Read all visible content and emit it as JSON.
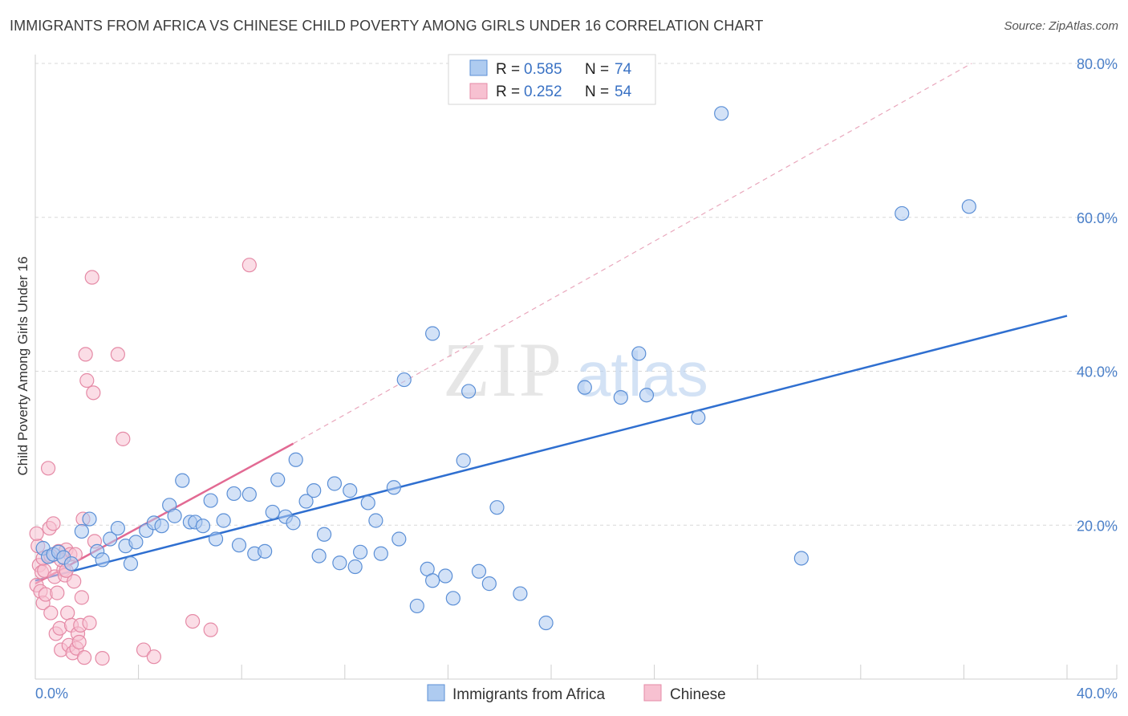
{
  "title": "IMMIGRANTS FROM AFRICA VS CHINESE CHILD POVERTY AMONG GIRLS UNDER 16 CORRELATION CHART",
  "source": "Source: ZipAtlas.com",
  "watermark": {
    "zip": "ZIP",
    "atlas": "atlas"
  },
  "legend": {
    "rows": [
      {
        "r_label": "R = ",
        "r_value": "0.585",
        "n_label": "N = ",
        "n_value": "74"
      },
      {
        "r_label": "R = ",
        "r_value": "0.252",
        "n_label": "N = ",
        "n_value": "54"
      }
    ]
  },
  "bottom_legend": [
    "Immigrants from Africa",
    "Chinese"
  ],
  "colors": {
    "africa_fill": "#aecbf0",
    "africa_stroke": "#5b8fd6",
    "africa_line": "#2f6fd0",
    "chinese_fill": "#f7c1d1",
    "chinese_stroke": "#e58aa6",
    "chinese_line": "#e26a93",
    "grid": "#d8d8d8",
    "tick_label": "#4a7fc8"
  },
  "chart_data": {
    "type": "scatter",
    "xlabel": "",
    "ylabel": "Child Poverty Among Girls Under 16",
    "xlim": [
      0,
      40
    ],
    "ylim": [
      0,
      80
    ],
    "x_tick_labels": [
      {
        "value": 0,
        "label": "0.0%"
      },
      {
        "value": 40,
        "label": "40.0%"
      }
    ],
    "y_tick_labels": [
      {
        "value": 20,
        "label": "20.0%"
      },
      {
        "value": 40,
        "label": "40.0%"
      },
      {
        "value": 60,
        "label": "60.0%"
      },
      {
        "value": 80,
        "label": "80.0%"
      }
    ],
    "grid": true,
    "legend_position": "top-center",
    "series": [
      {
        "name": "Immigrants from Africa",
        "R": 0.585,
        "N": 74,
        "trend": {
          "x": [
            0,
            40
          ],
          "y": [
            12.8,
            47.2
          ]
        },
        "points": [
          [
            0.3,
            17.0
          ],
          [
            0.5,
            15.9
          ],
          [
            0.7,
            16.2
          ],
          [
            0.9,
            16.5
          ],
          [
            1.1,
            15.8
          ],
          [
            1.4,
            15.0
          ],
          [
            1.8,
            19.2
          ],
          [
            2.1,
            20.8
          ],
          [
            2.4,
            16.6
          ],
          [
            2.6,
            15.5
          ],
          [
            2.9,
            18.2
          ],
          [
            3.2,
            19.6
          ],
          [
            3.5,
            17.3
          ],
          [
            3.7,
            15.0
          ],
          [
            3.9,
            17.8
          ],
          [
            4.3,
            19.3
          ],
          [
            4.6,
            20.3
          ],
          [
            4.9,
            19.9
          ],
          [
            5.2,
            22.6
          ],
          [
            5.4,
            21.2
          ],
          [
            5.7,
            25.8
          ],
          [
            6.0,
            20.4
          ],
          [
            6.2,
            20.4
          ],
          [
            6.5,
            19.9
          ],
          [
            6.8,
            23.2
          ],
          [
            7.0,
            18.2
          ],
          [
            7.3,
            20.6
          ],
          [
            7.7,
            24.1
          ],
          [
            7.9,
            17.4
          ],
          [
            8.3,
            24.0
          ],
          [
            8.5,
            16.3
          ],
          [
            8.9,
            16.6
          ],
          [
            9.2,
            21.7
          ],
          [
            9.4,
            25.9
          ],
          [
            9.7,
            21.1
          ],
          [
            10.0,
            20.3
          ],
          [
            10.1,
            28.5
          ],
          [
            10.5,
            23.1
          ],
          [
            10.8,
            24.5
          ],
          [
            11.0,
            16.0
          ],
          [
            11.2,
            18.8
          ],
          [
            11.6,
            25.4
          ],
          [
            11.8,
            15.1
          ],
          [
            12.2,
            24.5
          ],
          [
            12.4,
            14.6
          ],
          [
            12.6,
            16.5
          ],
          [
            12.9,
            22.9
          ],
          [
            13.2,
            20.6
          ],
          [
            13.4,
            16.3
          ],
          [
            13.9,
            24.9
          ],
          [
            14.1,
            18.2
          ],
          [
            14.3,
            38.9
          ],
          [
            14.8,
            9.5
          ],
          [
            15.2,
            14.3
          ],
          [
            15.4,
            12.8
          ],
          [
            15.4,
            44.9
          ],
          [
            15.9,
            13.4
          ],
          [
            16.2,
            10.5
          ],
          [
            16.6,
            28.4
          ],
          [
            16.8,
            37.4
          ],
          [
            17.2,
            14.0
          ],
          [
            17.6,
            12.4
          ],
          [
            17.9,
            22.3
          ],
          [
            18.8,
            11.1
          ],
          [
            19.8,
            7.3
          ],
          [
            21.3,
            37.9
          ],
          [
            22.7,
            36.6
          ],
          [
            23.4,
            42.3
          ],
          [
            23.7,
            36.9
          ],
          [
            25.7,
            34.0
          ],
          [
            26.6,
            73.5
          ],
          [
            29.7,
            15.7
          ],
          [
            33.6,
            60.5
          ],
          [
            36.2,
            61.4
          ]
        ]
      },
      {
        "name": "Chinese",
        "R": 0.252,
        "N": 54,
        "trend": {
          "x": [
            0,
            10
          ],
          "y": [
            12.4,
            30.6
          ]
        },
        "trend_extension": {
          "x": [
            10,
            36.3
          ],
          "y": [
            30.6,
            80.0
          ]
        },
        "points": [
          [
            0.05,
            12.2
          ],
          [
            0.1,
            17.3
          ],
          [
            0.15,
            14.8
          ],
          [
            0.2,
            11.4
          ],
          [
            0.25,
            13.9
          ],
          [
            0.3,
            9.9
          ],
          [
            0.35,
            14.1
          ],
          [
            0.4,
            11.0
          ],
          [
            0.5,
            27.4
          ],
          [
            0.55,
            19.6
          ],
          [
            0.6,
            8.6
          ],
          [
            0.7,
            20.2
          ],
          [
            0.75,
            13.3
          ],
          [
            0.8,
            5.9
          ],
          [
            0.85,
            11.2
          ],
          [
            0.9,
            16.6
          ],
          [
            0.95,
            6.6
          ],
          [
            1.0,
            3.8
          ],
          [
            1.1,
            14.2
          ],
          [
            1.15,
            13.5
          ],
          [
            1.2,
            16.8
          ],
          [
            1.25,
            8.6
          ],
          [
            1.3,
            4.4
          ],
          [
            1.35,
            16.2
          ],
          [
            1.4,
            7.0
          ],
          [
            1.45,
            3.4
          ],
          [
            1.5,
            12.7
          ],
          [
            1.55,
            16.2
          ],
          [
            1.6,
            4.0
          ],
          [
            1.65,
            5.9
          ],
          [
            1.7,
            4.8
          ],
          [
            1.75,
            7.0
          ],
          [
            1.8,
            10.6
          ],
          [
            1.85,
            20.8
          ],
          [
            1.9,
            2.8
          ],
          [
            1.95,
            42.2
          ],
          [
            2.0,
            38.8
          ],
          [
            2.1,
            7.3
          ],
          [
            2.2,
            52.2
          ],
          [
            2.25,
            37.2
          ],
          [
            2.3,
            17.9
          ],
          [
            2.6,
            2.7
          ],
          [
            3.2,
            42.2
          ],
          [
            3.4,
            31.2
          ],
          [
            4.2,
            3.8
          ],
          [
            4.6,
            2.9
          ],
          [
            6.1,
            7.5
          ],
          [
            6.8,
            6.4
          ],
          [
            8.3,
            53.8
          ],
          [
            0.05,
            18.9
          ],
          [
            0.3,
            15.7
          ],
          [
            0.6,
            16.0
          ],
          [
            1.0,
            15.5
          ],
          [
            1.2,
            14.1
          ]
        ]
      }
    ]
  }
}
